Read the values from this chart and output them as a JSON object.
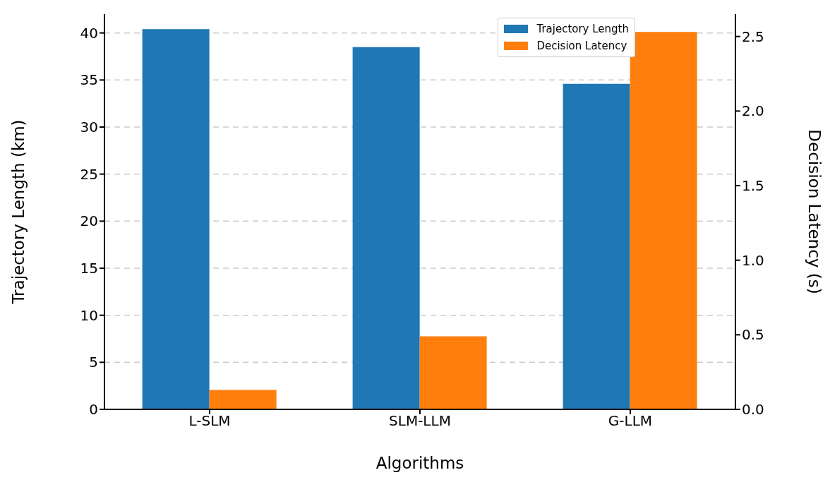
{
  "chart_data": {
    "type": "bar",
    "xlabel": "Algorithms",
    "ylabel": "Trajectory Length (km)",
    "y2label": "Decision Latency (s)",
    "categories": [
      "L-SLM",
      "SLM-LLM",
      "G-LLM"
    ],
    "series": [
      {
        "name": "Trajectory Length",
        "color": "#1f77b4",
        "values": [
          40.4,
          38.5,
          34.6
        ]
      },
      {
        "name": "Decision Latency",
        "color": "#ff7f0e",
        "values": [
          0.13,
          0.49,
          2.53
        ],
        "axis": "y2"
      }
    ],
    "ylim": [
      0,
      42
    ],
    "yticks": [
      0,
      5,
      10,
      15,
      20,
      25,
      30,
      35,
      40
    ],
    "y2lim": [
      0,
      2.65
    ],
    "y2ticks": [
      {
        "value": 0,
        "label": "0.0"
      },
      {
        "value": 0.5,
        "label": "0.5"
      },
      {
        "value": 1,
        "label": "1.0"
      },
      {
        "value": 1.5,
        "label": "1.5"
      },
      {
        "value": 2,
        "label": "2.0"
      },
      {
        "value": 2.5,
        "label": "2.5"
      }
    ],
    "grid": "y",
    "legend": "top right"
  }
}
